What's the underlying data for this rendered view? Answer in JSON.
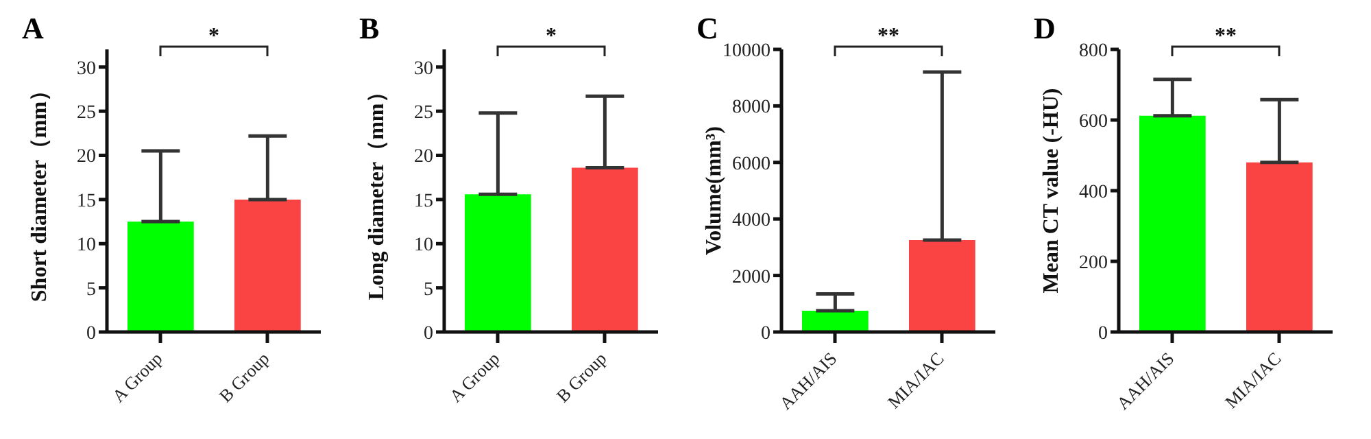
{
  "chart_data": [
    {
      "type": "bar",
      "title": "A",
      "ylabel": "Short diameter（mm）",
      "categories": [
        "A Group",
        "B Group"
      ],
      "values": [
        12.5,
        15
      ],
      "colors": [
        "#00ff00",
        "#fa4444"
      ],
      "errors": [
        [
          12.5,
          20.5
        ],
        [
          15,
          22.2
        ]
      ],
      "ylim": [
        0,
        32
      ],
      "yticks": [
        0,
        5,
        10,
        15,
        20,
        25,
        30
      ],
      "annotations": [
        "*"
      ]
    },
    {
      "type": "bar",
      "title": "B",
      "ylabel": "Long diameter（mm）",
      "categories": [
        "A Group",
        "B Group"
      ],
      "values": [
        15.6,
        18.6
      ],
      "colors": [
        "#00ff00",
        "#fa4444"
      ],
      "errors": [
        [
          15.6,
          24.8
        ],
        [
          18.6,
          26.7
        ]
      ],
      "ylim": [
        0,
        32
      ],
      "yticks": [
        0,
        5,
        10,
        15,
        20,
        25,
        30
      ],
      "annotations": [
        "*"
      ]
    },
    {
      "type": "bar",
      "title": "C",
      "ylabel": "Volume(mm³)",
      "categories": [
        "AAH/AIS",
        "MIA/IAC"
      ],
      "values": [
        750,
        3250
      ],
      "colors": [
        "#00ff00",
        "#fa4444"
      ],
      "errors": [
        [
          750,
          1350
        ],
        [
          3250,
          9200
        ]
      ],
      "ylim": [
        0,
        10000
      ],
      "yticks": [
        0,
        2000,
        4000,
        6000,
        8000,
        10000
      ],
      "annotations": [
        "**"
      ]
    },
    {
      "type": "bar",
      "title": "D",
      "ylabel": "Mean CT value (-HU)",
      "categories": [
        "AAH/AIS",
        "MIA/IAC"
      ],
      "values": [
        612,
        480
      ],
      "colors": [
        "#00ff00",
        "#fa4444"
      ],
      "errors": [
        [
          612,
          715
        ],
        [
          480,
          658
        ]
      ],
      "ylim": [
        0,
        800
      ],
      "yticks": [
        0,
        200,
        400,
        600,
        800
      ],
      "annotations": [
        "**"
      ]
    }
  ]
}
